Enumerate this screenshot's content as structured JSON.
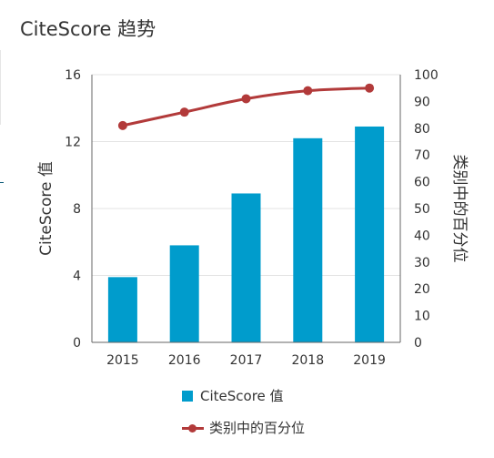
{
  "title": "CiteScore 趋势",
  "colors": {
    "bar": "#009ccc",
    "line": "#b23a3a",
    "grid": "#e3e3e3",
    "axis": "#666666"
  },
  "chart_data": {
    "type": "bar+line",
    "title": "CiteScore 趋势",
    "categories": [
      "2015",
      "2016",
      "2017",
      "2018",
      "2019"
    ],
    "series": [
      {
        "name": "CiteScore 值",
        "type": "bar",
        "axis": "left",
        "values": [
          3.9,
          5.8,
          8.9,
          12.2,
          12.9
        ]
      },
      {
        "name": "类别中的百分位",
        "type": "line",
        "axis": "right",
        "values": [
          81,
          86,
          91,
          94,
          95
        ]
      }
    ],
    "ylabel_left": "CiteScore 值",
    "ylabel_right": "类别中的百分位",
    "ylim_left": [
      0,
      16
    ],
    "yticks_left": [
      "0",
      "4",
      "8",
      "12",
      "16"
    ],
    "ylim_right": [
      0,
      100
    ],
    "yticks_right": [
      "0",
      "10",
      "20",
      "30",
      "40",
      "50",
      "60",
      "70",
      "80",
      "90",
      "100"
    ],
    "grid": true,
    "legend_position": "bottom"
  }
}
